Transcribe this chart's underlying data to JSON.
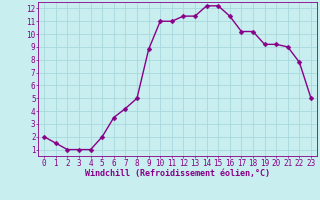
{
  "x": [
    0,
    1,
    2,
    3,
    4,
    5,
    6,
    7,
    8,
    9,
    10,
    11,
    12,
    13,
    14,
    15,
    16,
    17,
    18,
    19,
    20,
    21,
    22,
    23
  ],
  "y": [
    2,
    1.5,
    1,
    1,
    1,
    2,
    3.5,
    4.2,
    5.0,
    8.8,
    11,
    11,
    11.4,
    11.4,
    12.2,
    12.2,
    11.4,
    10.2,
    10.2,
    9.2,
    9.2,
    9.0,
    7.8,
    5.0
  ],
  "line_color": "#880088",
  "marker_color": "#880088",
  "bg_color": "#c8eef0",
  "grid_color": "#a8d8dc",
  "xlabel": "Windchill (Refroidissement éolien,°C)",
  "xlabel_color": "#880088",
  "xlim": [
    -0.5,
    23.5
  ],
  "ylim": [
    0.5,
    12.5
  ],
  "xticks": [
    0,
    1,
    2,
    3,
    4,
    5,
    6,
    7,
    8,
    9,
    10,
    11,
    12,
    13,
    14,
    15,
    16,
    17,
    18,
    19,
    20,
    21,
    22,
    23
  ],
  "yticks": [
    1,
    2,
    3,
    4,
    5,
    6,
    7,
    8,
    9,
    10,
    11,
    12
  ],
  "tick_color": "#880088",
  "axis_color": "#880088",
  "font_size": 5.5,
  "xlabel_fontsize": 6.0,
  "line_width": 1.0,
  "marker_size": 2.5
}
